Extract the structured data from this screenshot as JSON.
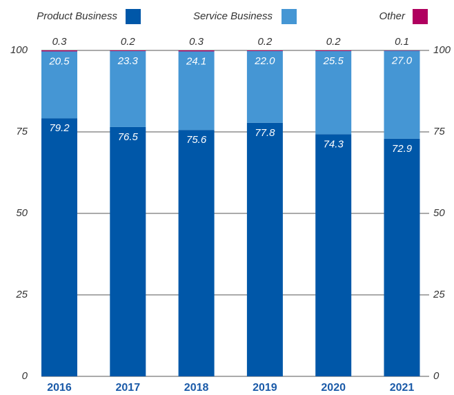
{
  "chart_data": {
    "type": "stacked_bar",
    "categories": [
      "2016",
      "2017",
      "2018",
      "2019",
      "2020",
      "2021"
    ],
    "series": [
      {
        "name": "Product Business",
        "color": "#0057a8",
        "values": [
          79.2,
          76.5,
          75.6,
          77.8,
          74.3,
          72.9
        ],
        "value_labels": [
          "79.2",
          "76.5",
          "75.6",
          "77.8",
          "74.3",
          "72.9"
        ]
      },
      {
        "name": "Service Business",
        "color": "#4596d4",
        "values": [
          20.5,
          23.3,
          24.1,
          22.0,
          25.5,
          27.0
        ],
        "value_labels": [
          "20.5",
          "23.3",
          "24.1",
          "22.0",
          "25.5",
          "27.0"
        ]
      },
      {
        "name": "Other",
        "color": "#b0005f",
        "values": [
          0.3,
          0.2,
          0.3,
          0.2,
          0.2,
          0.1
        ],
        "value_labels": [
          "0.3",
          "0.2",
          "0.3",
          "0.2",
          "0.2",
          "0.1"
        ]
      }
    ],
    "ylim": [
      0,
      100
    ],
    "yticks": [
      0,
      25,
      50,
      75,
      100
    ],
    "y2lim": [
      0,
      100
    ],
    "y2ticks": [
      0,
      25,
      50,
      75,
      100
    ],
    "grid": true,
    "legend": "top"
  }
}
